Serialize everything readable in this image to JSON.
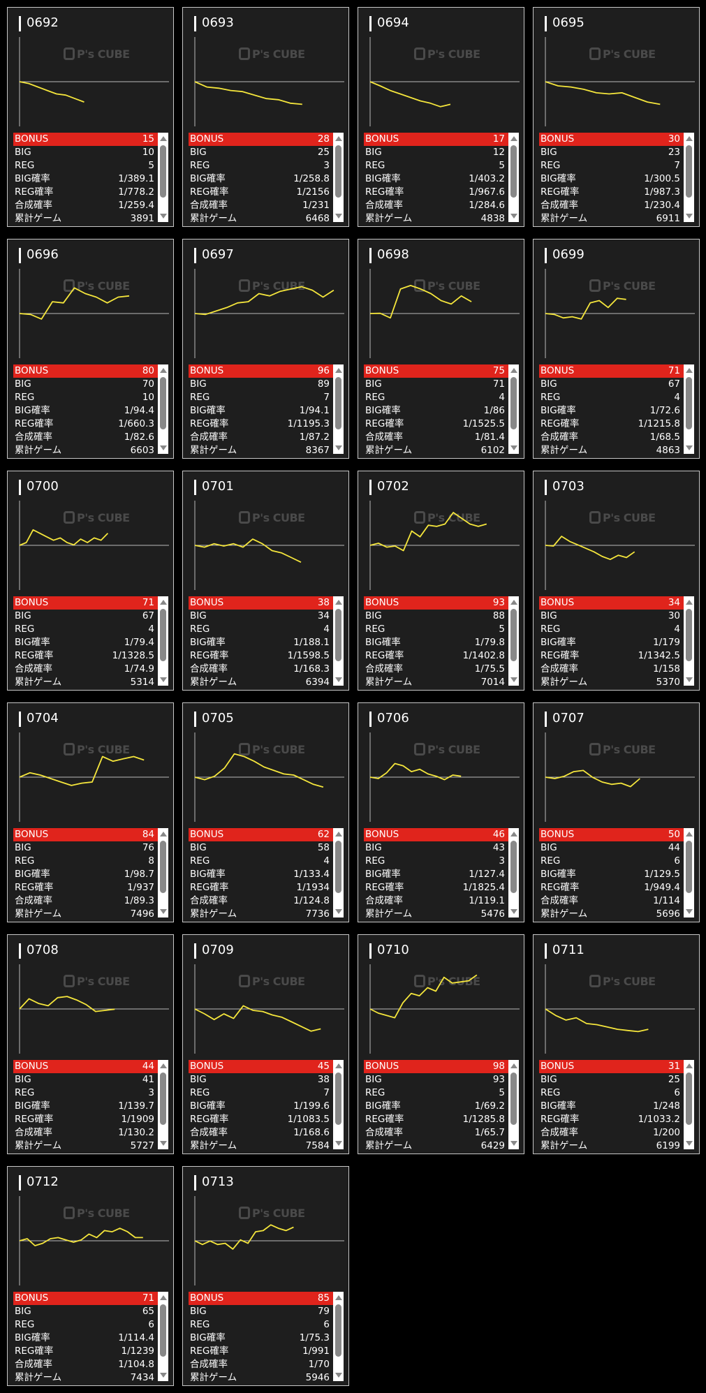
{
  "labels": {
    "bonus": "BONUS",
    "big": "BIG",
    "reg": "REG",
    "big_rate": "BIG確率",
    "reg_rate": "REG確率",
    "total_rate": "合成確率",
    "games": "累計ゲーム"
  },
  "watermark": "P's CUBE",
  "colors": {
    "background": "#000000",
    "card": "#1e1e1e",
    "highlight": "#e0241c",
    "line": "#f5e63c"
  },
  "chart_data": {
    "type": "line",
    "xlim": [
      0,
      9000
    ],
    "ylim": [
      -5800,
      5800
    ],
    "x_unit": "games",
    "y_unit": "medal difference (approx.)"
  },
  "machines": [
    {
      "id": "0692",
      "bonus": "15",
      "big": "10",
      "reg": "5",
      "big_rate": "1/389.1",
      "reg_rate": "1/778.2",
      "total_rate": "1/259.4",
      "games": "3891",
      "trend": [
        0,
        -240,
        -690,
        -1140,
        -1590,
        -1740,
        -2190,
        -2640
      ]
    },
    {
      "id": "0693",
      "bonus": "28",
      "big": "25",
      "reg": "3",
      "big_rate": "1/258.8",
      "reg_rate": "1/2156",
      "total_rate": "1/231",
      "games": "6468",
      "trend": [
        0,
        -690,
        -840,
        -1140,
        -1290,
        -1740,
        -2190,
        -2340,
        -2790,
        -2940
      ]
    },
    {
      "id": "0694",
      "bonus": "17",
      "big": "12",
      "reg": "5",
      "big_rate": "1/403.2",
      "reg_rate": "1/967.6",
      "total_rate": "1/284.6",
      "games": "4838",
      "trend": [
        0,
        -540,
        -1140,
        -1590,
        -2040,
        -2490,
        -2790,
        -3240,
        -2940
      ]
    },
    {
      "id": "0695",
      "bonus": "30",
      "big": "23",
      "reg": "7",
      "big_rate": "1/300.5",
      "reg_rate": "1/987.3",
      "total_rate": "1/230.4",
      "games": "6911",
      "trend": [
        0,
        -540,
        -690,
        -990,
        -1440,
        -1590,
        -1440,
        -2040,
        -2640,
        -2940
      ]
    },
    {
      "id": "0696",
      "bonus": "80",
      "big": "70",
      "reg": "10",
      "big_rate": "1/94.4",
      "reg_rate": "1/660.3",
      "total_rate": "1/82.6",
      "games": "6603",
      "trend": [
        0,
        -120,
        -720,
        1530,
        1380,
        3330,
        2580,
        2130,
        1380,
        2130,
        2280
      ]
    },
    {
      "id": "0697",
      "bonus": "96",
      "big": "89",
      "reg": "7",
      "big_rate": "1/94.1",
      "reg_rate": "1/1195.3",
      "total_rate": "1/87.2",
      "games": "8367",
      "trend": [
        0,
        -120,
        330,
        780,
        1380,
        1530,
        2580,
        2280,
        2880,
        3180,
        3480,
        3030,
        2130,
        3030
      ]
    },
    {
      "id": "0698",
      "bonus": "75",
      "big": "71",
      "reg": "4",
      "big_rate": "1/86",
      "reg_rate": "1/1525.5",
      "total_rate": "1/81.4",
      "games": "6102",
      "trend": [
        0,
        30,
        -570,
        3180,
        3630,
        3180,
        2580,
        1680,
        1230,
        2280,
        1530
      ]
    },
    {
      "id": "0699",
      "bonus": "71",
      "big": "67",
      "reg": "4",
      "big_rate": "1/72.6",
      "reg_rate": "1/1215.8",
      "total_rate": "1/68.5",
      "games": "4863",
      "trend": [
        0,
        -120,
        -570,
        -420,
        -720,
        1380,
        1680,
        780,
        1980,
        1830
      ]
    },
    {
      "id": "0700",
      "bonus": "71",
      "big": "67",
      "reg": "4",
      "big_rate": "1/79.4",
      "reg_rate": "1/1328.5",
      "total_rate": "1/74.9",
      "games": "5314",
      "trend": [
        0,
        360,
        2010,
        1560,
        1110,
        660,
        960,
        360,
        60,
        810,
        360,
        960,
        660,
        1560
      ]
    },
    {
      "id": "0701",
      "bonus": "38",
      "big": "34",
      "reg": "4",
      "big_rate": "1/188.1",
      "reg_rate": "1/1598.5",
      "total_rate": "1/168.3",
      "games": "6394",
      "trend": [
        0,
        -240,
        210,
        -90,
        210,
        -240,
        810,
        210,
        -690,
        -990,
        -1590,
        -2190
      ]
    },
    {
      "id": "0702",
      "bonus": "93",
      "big": "88",
      "reg": "5",
      "big_rate": "1/79.8",
      "reg_rate": "1/1402.8",
      "total_rate": "1/75.5",
      "games": "7014",
      "trend": [
        0,
        270,
        -240,
        -90,
        -690,
        1860,
        1110,
        2610,
        2460,
        2760,
        4260,
        3510,
        2760,
        2460,
        2760
      ]
    },
    {
      "id": "0703",
      "bonus": "34",
      "big": "30",
      "reg": "4",
      "big_rate": "1/179",
      "reg_rate": "1/1342.5",
      "total_rate": "1/158",
      "games": "5370",
      "trend": [
        0,
        -90,
        1170,
        510,
        60,
        -390,
        -840,
        -1440,
        -1830,
        -1290,
        -1590,
        -840
      ]
    },
    {
      "id": "0704",
      "bonus": "84",
      "big": "76",
      "reg": "8",
      "big_rate": "1/98.7",
      "reg_rate": "1/937",
      "total_rate": "1/89.3",
      "games": "7496",
      "trend": [
        0,
        570,
        270,
        -180,
        -630,
        -1080,
        -780,
        -630,
        2670,
        2070,
        2370,
        2670,
        2220
      ]
    },
    {
      "id": "0705",
      "bonus": "62",
      "big": "58",
      "reg": "4",
      "big_rate": "1/133.4",
      "reg_rate": "1/1934",
      "total_rate": "1/124.8",
      "games": "7736",
      "trend": [
        0,
        -330,
        120,
        1170,
        3030,
        2670,
        2070,
        1320,
        870,
        420,
        270,
        -330,
        -930,
        -1290
      ]
    },
    {
      "id": "0706",
      "bonus": "46",
      "big": "43",
      "reg": "3",
      "big_rate": "1/127.4",
      "reg_rate": "1/1825.4",
      "total_rate": "1/119.1",
      "games": "5476",
      "trend": [
        0,
        -180,
        570,
        1770,
        1470,
        720,
        1020,
        420,
        120,
        -330,
        270,
        120
      ]
    },
    {
      "id": "0707",
      "bonus": "50",
      "big": "44",
      "reg": "6",
      "big_rate": "1/129.5",
      "reg_rate": "1/949.4",
      "total_rate": "1/114",
      "games": "5696",
      "trend": [
        0,
        -180,
        120,
        720,
        870,
        -30,
        -630,
        -930,
        -780,
        -1230,
        -180
      ]
    },
    {
      "id": "0708",
      "bonus": "44",
      "big": "41",
      "reg": "3",
      "big_rate": "1/139.7",
      "reg_rate": "1/1909",
      "total_rate": "1/130.2",
      "games": "5727",
      "trend": [
        0,
        1320,
        720,
        420,
        1470,
        1620,
        1170,
        570,
        -330,
        -180,
        -30
      ]
    },
    {
      "id": "0709",
      "bonus": "45",
      "big": "38",
      "reg": "7",
      "big_rate": "1/199.6",
      "reg_rate": "1/1083.5",
      "total_rate": "1/168.6",
      "games": "7584",
      "trend": [
        0,
        -630,
        -1380,
        -630,
        -1230,
        420,
        -180,
        -330,
        -780,
        -1080,
        -1680,
        -2280,
        -2880,
        -2580
      ]
    },
    {
      "id": "0710",
      "bonus": "98",
      "big": "93",
      "reg": "5",
      "big_rate": "1/69.2",
      "reg_rate": "1/1285.8",
      "total_rate": "1/65.7",
      "games": "6429",
      "trend": [
        0,
        -540,
        -840,
        -1140,
        810,
        2010,
        1710,
        2760,
        2310,
        4110,
        3360,
        3510,
        3660,
        4410
      ]
    },
    {
      "id": "0711",
      "bonus": "31",
      "big": "25",
      "reg": "6",
      "big_rate": "1/248",
      "reg_rate": "1/1033.2",
      "total_rate": "1/200",
      "games": "6199",
      "trend": [
        0,
        -840,
        -1440,
        -1140,
        -1890,
        -2040,
        -2340,
        -2640,
        -2790,
        -2940,
        -2640
      ]
    },
    {
      "id": "0712",
      "bonus": "71",
      "big": "65",
      "reg": "6",
      "big_rate": "1/114.4",
      "reg_rate": "1/1239",
      "total_rate": "1/104.8",
      "games": "7434",
      "trend": [
        0,
        270,
        -630,
        -330,
        270,
        420,
        120,
        -180,
        120,
        870,
        420,
        1320,
        1170,
        1620,
        1170,
        420,
        420
      ]
    },
    {
      "id": "0713",
      "bonus": "85",
      "big": "79",
      "reg": "6",
      "big_rate": "1/75.3",
      "reg_rate": "1/991",
      "total_rate": "1/70",
      "games": "5946",
      "trend": [
        0,
        -480,
        -30,
        -480,
        -330,
        -1080,
        120,
        -330,
        1170,
        1320,
        2070,
        1620,
        1320,
        1770
      ]
    }
  ]
}
